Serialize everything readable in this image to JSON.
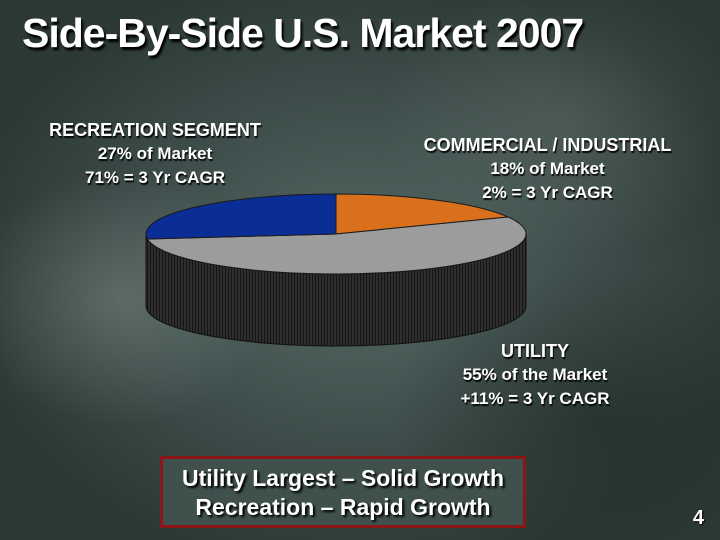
{
  "slide": {
    "title": "Side-By-Side U.S. Market 2007",
    "page_number": "4"
  },
  "labels": {
    "recreation": {
      "name": "RECREATION SEGMENT",
      "share": "27% of Market",
      "growth": "71% = 3 Yr CAGR"
    },
    "commercial": {
      "name": "COMMERCIAL / INDUSTRIAL",
      "share": "18% of Market",
      "growth": "2% = 3 Yr CAGR"
    },
    "utility": {
      "name": "UTILITY",
      "share": "55% of the Market",
      "growth": "+11% = 3 Yr CAGR"
    }
  },
  "callout": {
    "line1": "Utility Largest – Solid Growth",
    "line2": "Recreation – Rapid Growth"
  },
  "chart_data": {
    "type": "pie",
    "style": "3d",
    "categories": [
      "COMMERCIAL / INDUSTRIAL",
      "UTILITY",
      "RECREATION SEGMENT"
    ],
    "values": [
      18,
      55,
      27
    ],
    "unit": "%",
    "colors": [
      "#d8701c",
      "#9c9c9c",
      "#0a2d96"
    ],
    "side_color": "#2b2b2b"
  }
}
